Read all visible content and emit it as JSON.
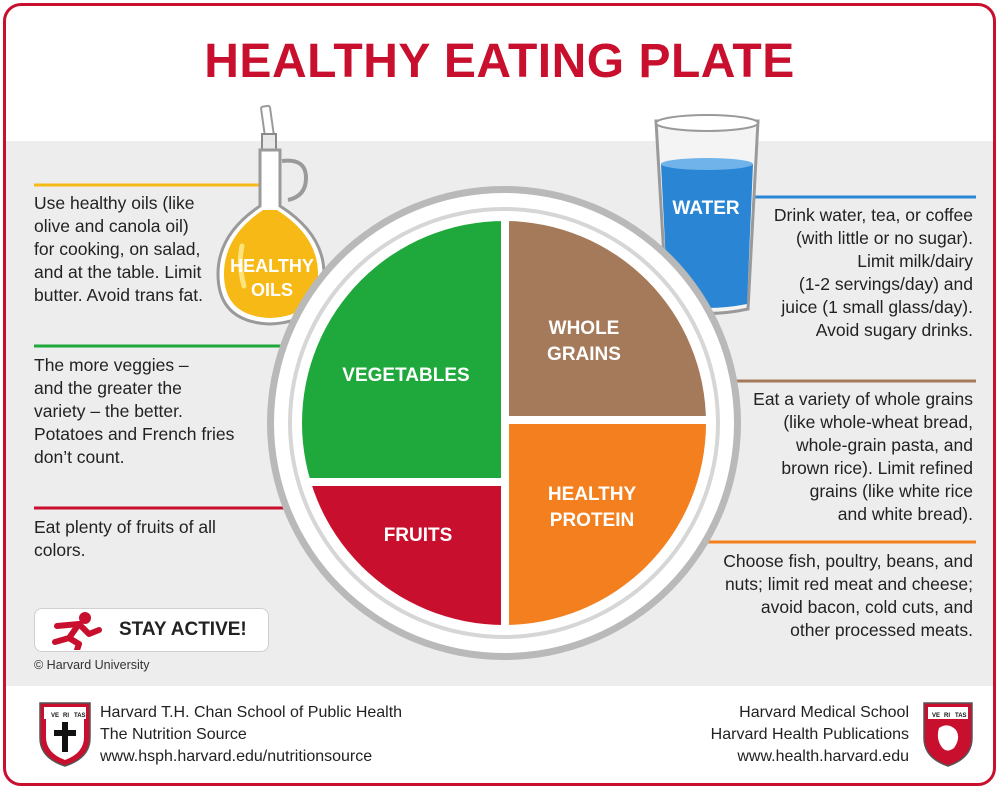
{
  "title": "HEALTHY EATING PLATE",
  "plate": {
    "vegetables": "VEGETABLES",
    "whole_grains": [
      "WHOLE",
      "GRAINS"
    ],
    "healthy_protein": [
      "HEALTHY",
      "PROTEIN"
    ],
    "fruits": "FRUITS"
  },
  "oils_bottle": [
    "HEALTHY",
    "OILS"
  ],
  "water_glass": "WATER",
  "notes": {
    "oils": [
      "Use healthy oils (like",
      "olive and canola oil)",
      "for cooking, on salad,",
      "and at the table. Limit",
      "butter. Avoid trans fat."
    ],
    "vegetables": [
      "The more veggies –",
      "and the greater the",
      "variety – the better.",
      "Potatoes and French fries",
      "don’t count."
    ],
    "fruits": [
      "Eat plenty of fruits of all",
      "colors."
    ],
    "water": [
      "Drink water, tea, or coffee",
      "(with little or no sugar).",
      "Limit milk/dairy",
      "(1-2 servings/day) and",
      "juice (1 small glass/day).",
      "Avoid sugary drinks."
    ],
    "grains": [
      "Eat a variety of whole grains",
      "(like whole-wheat bread,",
      "whole-grain pasta, and",
      "brown rice). Limit refined",
      "grains (like white rice",
      "and white bread)."
    ],
    "protein": [
      "Choose fish, poultry, beans, and",
      "nuts;  limit red meat and cheese;",
      "avoid bacon, cold cuts,  and",
      "other processed meats."
    ]
  },
  "stay_active": "STAY ACTIVE!",
  "copyright": "© Harvard University",
  "footer_left": [
    "Harvard T.H. Chan School of Public Health",
    "The Nutrition Source",
    "www.hsph.harvard.edu/nutritionsource"
  ],
  "footer_right": [
    "Harvard Medical School",
    "Harvard Health Publications",
    "www.health.harvard.edu"
  ],
  "shield_text": [
    "VE",
    "RI",
    "TAS"
  ],
  "colors": {
    "brand_red": "#c8102e",
    "vegetables": "#1fa83b",
    "whole_grains": "#a57a5a",
    "protein": "#f37f1e",
    "fruits": "#c8102e",
    "oil": "#f6b915",
    "water": "#2a86d4"
  }
}
